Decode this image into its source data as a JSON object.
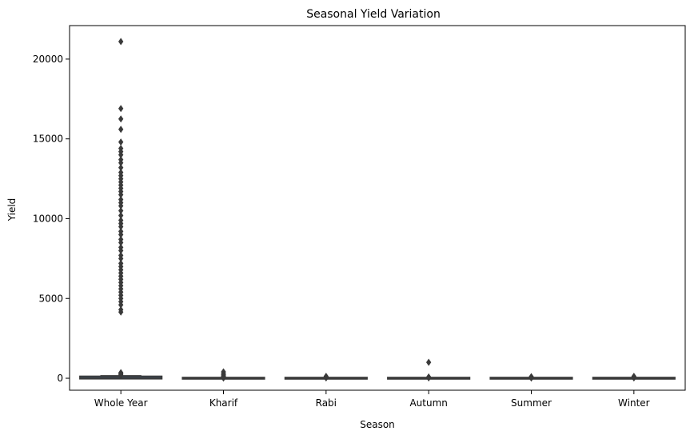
{
  "chart_data": {
    "type": "box",
    "title": "Seasonal Yield Variation",
    "xlabel": "Season",
    "ylabel": "Yield",
    "categories": [
      "Whole Year",
      "Kharif",
      "Rabi",
      "Autumn",
      "Summer",
      "Winter"
    ],
    "ylim": [
      -750,
      22100
    ],
    "yticks": [
      0,
      5000,
      10000,
      15000,
      20000
    ],
    "grid": false,
    "colors": {
      "box": "#3a3a3a",
      "fliers": "#3a3a3a",
      "axes": "#000000"
    },
    "boxes": [
      {
        "category": "Whole Year",
        "q1": 10,
        "median": 30,
        "q3": 80,
        "whisker_low": 0,
        "whisker_high": 160,
        "fliers": [
          21100,
          16900,
          16250,
          15600,
          14800,
          14400,
          14200,
          14000,
          13700,
          13500,
          13200,
          12900,
          12700,
          12500,
          12300,
          12100,
          11900,
          11700,
          11500,
          11200,
          11000,
          10800,
          10500,
          10200,
          9900,
          9700,
          9500,
          9200,
          9000,
          8700,
          8500,
          8200,
          8000,
          7700,
          7500,
          7200,
          7000,
          6800,
          6600,
          6400,
          6200,
          6000,
          5800,
          5600,
          5400,
          5200,
          5000,
          4800,
          4600,
          4300,
          4150,
          350,
          300,
          250,
          200
        ]
      },
      {
        "category": "Kharif",
        "q1": 0,
        "median": 2,
        "q3": 5,
        "whisker_low": 0,
        "whisker_high": 12,
        "fliers": [
          400,
          300,
          220,
          150,
          100,
          60,
          30,
          15
        ]
      },
      {
        "category": "Rabi",
        "q1": 0,
        "median": 2,
        "q3": 5,
        "whisker_low": 0,
        "whisker_high": 10,
        "fliers": [
          120,
          90,
          60,
          40,
          20
        ]
      },
      {
        "category": "Autumn",
        "q1": 0,
        "median": 2,
        "q3": 5,
        "whisker_low": 0,
        "whisker_high": 10,
        "fliers": [
          1000,
          80,
          50,
          20
        ]
      },
      {
        "category": "Summer",
        "q1": 0,
        "median": 2,
        "q3": 5,
        "whisker_low": 0,
        "whisker_high": 10,
        "fliers": [
          100,
          60,
          30,
          15
        ]
      },
      {
        "category": "Winter",
        "q1": 0,
        "median": 2,
        "q3": 5,
        "whisker_low": 0,
        "whisker_high": 10,
        "fliers": [
          120,
          80,
          40,
          20
        ]
      }
    ]
  }
}
